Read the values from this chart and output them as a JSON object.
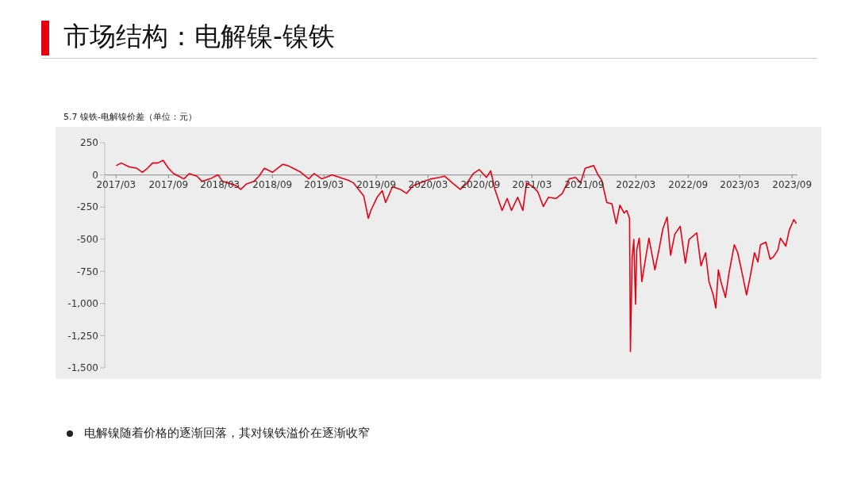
{
  "chart_data": {
    "type": "line",
    "title": "市场结构：电解镍-镍铁",
    "subtitle": "5.7 镍铁-电解镍价差（单位：元）",
    "annotations": [
      "电解镍随着价格的逐渐回落，其对镍铁溢价在逐渐收窄"
    ],
    "x": [
      "2017-03-01",
      "2017-03-19",
      "2017-04-16",
      "2017-05-13",
      "2017-06-01",
      "2017-06-19",
      "2017-07-07",
      "2017-07-25",
      "2017-08-13",
      "2017-09-01",
      "2017-09-19",
      "2017-10-07",
      "2017-10-25",
      "2017-11-13",
      "2017-12-10",
      "2017-12-28",
      "2018-01-25",
      "2018-02-22",
      "2018-03-10",
      "2018-03-28",
      "2018-04-25",
      "2018-05-13",
      "2018-06-01",
      "2018-06-28",
      "2018-07-16",
      "2018-08-04",
      "2018-09-01",
      "2018-09-19",
      "2018-10-07",
      "2018-10-25",
      "2018-11-13",
      "2018-12-10",
      "2019-01-07",
      "2019-01-25",
      "2019-02-22",
      "2019-03-19",
      "2019-03-28",
      "2019-04-25",
      "2019-05-25",
      "2019-06-13",
      "2019-07-01",
      "2019-07-19",
      "2019-08-04",
      "2019-08-13",
      "2019-09-04",
      "2019-09-22",
      "2019-10-04",
      "2019-10-28",
      "2019-11-25",
      "2019-12-16",
      "2020-01-10",
      "2020-02-16",
      "2020-03-13",
      "2020-04-10",
      "2020-04-28",
      "2020-05-25",
      "2020-06-22",
      "2020-07-13",
      "2020-08-07",
      "2020-08-28",
      "2020-09-22",
      "2020-10-07",
      "2020-10-22",
      "2020-11-16",
      "2020-12-04",
      "2020-12-19",
      "2021-01-10",
      "2021-01-28",
      "2021-02-10",
      "2021-03-04",
      "2021-03-22",
      "2021-04-10",
      "2021-04-28",
      "2021-05-25",
      "2021-06-16",
      "2021-07-10",
      "2021-08-01",
      "2021-08-19",
      "2021-09-04",
      "2021-10-04",
      "2021-10-19",
      "2021-11-01",
      "2021-11-19",
      "2021-12-07",
      "2021-12-22",
      "2022-01-04",
      "2022-01-19",
      "2022-01-28",
      "2022-02-07",
      "2022-02-10",
      "2022-02-16",
      "2022-02-22",
      "2022-02-28",
      "2022-03-04",
      "2022-03-13",
      "2022-03-22",
      "2022-04-16",
      "2022-05-07",
      "2022-05-22",
      "2022-06-04",
      "2022-06-19",
      "2022-07-01",
      "2022-07-16",
      "2022-08-04",
      "2022-08-22",
      "2022-09-04",
      "2022-10-01",
      "2022-10-16",
      "2022-11-01",
      "2022-11-13",
      "2022-11-28",
      "2022-12-07",
      "2022-12-16",
      "2022-12-25",
      "2023-01-10",
      "2023-01-22",
      "2023-02-10",
      "2023-02-22",
      "2023-03-10",
      "2023-03-25",
      "2023-04-07",
      "2023-04-22",
      "2023-05-04",
      "2023-05-13",
      "2023-06-01",
      "2023-06-16",
      "2023-06-28",
      "2023-07-13",
      "2023-07-22",
      "2023-08-10",
      "2023-08-22",
      "2023-09-07",
      "2023-09-16"
    ],
    "values": [
      72,
      92,
      62,
      51,
      20,
      51,
      92,
      92,
      113,
      51,
      10,
      -10,
      -31,
      10,
      -10,
      -51,
      -31,
      0,
      -51,
      -62,
      -82,
      -113,
      -72,
      -51,
      -10,
      51,
      20,
      51,
      82,
      72,
      51,
      20,
      -31,
      10,
      -31,
      -10,
      0,
      -20,
      -41,
      -62,
      -113,
      -164,
      -338,
      -277,
      -174,
      -123,
      -215,
      -92,
      -113,
      -144,
      -82,
      -51,
      -31,
      -20,
      -10,
      -62,
      -113,
      -72,
      10,
      41,
      -20,
      31,
      -113,
      -277,
      -184,
      -277,
      -174,
      -277,
      -62,
      -92,
      -133,
      -246,
      -174,
      -184,
      -144,
      -31,
      -20,
      -62,
      51,
      72,
      0,
      -41,
      -215,
      -225,
      -379,
      -236,
      -297,
      -277,
      -338,
      -1374,
      -646,
      -502,
      -1005,
      -584,
      -492,
      -830,
      -492,
      -738,
      -574,
      -420,
      -328,
      -625,
      -461,
      -400,
      -687,
      -502,
      -451,
      -707,
      -605,
      -830,
      -933,
      -1035,
      -738,
      -830,
      -953,
      -769,
      -543,
      -605,
      -769,
      -933,
      -789,
      -605,
      -677,
      -543,
      -523,
      -656,
      -636,
      -584,
      -492,
      -554,
      -430,
      -348,
      -379
    ],
    "color": "#e60012",
    "xlim": [
      "2017-01-20",
      "2023-09-20"
    ],
    "xticks": [
      {
        "value": "2017-03",
        "label": "2017/03"
      },
      {
        "value": "2017-09",
        "label": "2017/09"
      },
      {
        "value": "2018-03",
        "label": "2018/03"
      },
      {
        "value": "2018-09",
        "label": "2018/09"
      },
      {
        "value": "2019-03",
        "label": "2019/03"
      },
      {
        "value": "2019-09",
        "label": "2019/09"
      },
      {
        "value": "2020-03",
        "label": "2020/03"
      },
      {
        "value": "2020-09",
        "label": "2020/09"
      },
      {
        "value": "2021-03",
        "label": "2021/03"
      },
      {
        "value": "2021-09",
        "label": "2021/09"
      },
      {
        "value": "2022-03",
        "label": "2022/03"
      },
      {
        "value": "2022-09",
        "label": "2022/09"
      },
      {
        "value": "2023-03",
        "label": "2023/03"
      },
      {
        "value": "2023-09",
        "label": "2023/09"
      }
    ],
    "ylim": [
      -1500,
      250
    ],
    "yticks": [
      250,
      0,
      -250,
      -500,
      -750,
      {
        "value": -1000,
        "label": "-1,000"
      },
      {
        "value": -1250,
        "label": "-1,250"
      },
      {
        "value": -1500,
        "label": "-1,500"
      }
    ],
    "grid": false,
    "legend": false,
    "line_style": "solid"
  }
}
